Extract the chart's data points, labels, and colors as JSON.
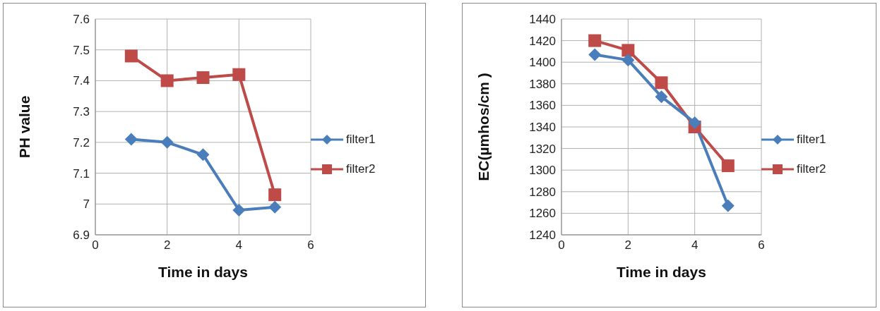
{
  "chart_data": [
    {
      "type": "line",
      "xlabel": "Time in days",
      "ylabel": "PH value",
      "x": [
        1,
        2,
        3,
        4,
        5
      ],
      "series": [
        {
          "name": "filter1",
          "color": "#4a7ebb",
          "values": [
            7.21,
            7.2,
            7.16,
            6.98,
            6.99
          ],
          "marker": "diamond"
        },
        {
          "name": "filter2",
          "color": "#be4b48",
          "values": [
            7.48,
            7.4,
            7.41,
            7.42,
            7.03
          ],
          "marker": "square"
        }
      ],
      "xlim": [
        0,
        6
      ],
      "xticks": [
        0,
        2,
        4,
        6
      ],
      "ylim": [
        6.9,
        7.6
      ],
      "yticks": [
        6.9,
        7,
        7.1,
        7.2,
        7.3,
        7.4,
        7.5,
        7.6
      ],
      "grid": true,
      "legend": "right"
    },
    {
      "type": "line",
      "xlabel": "Time  in days",
      "ylabel": "EC(µmhos/cm )",
      "x": [
        1,
        2,
        3,
        4,
        5
      ],
      "series": [
        {
          "name": "filter1",
          "color": "#4a7ebb",
          "values": [
            1407,
            1402,
            1368,
            1344,
            1267
          ],
          "marker": "diamond"
        },
        {
          "name": "filter2",
          "color": "#be4b48",
          "values": [
            1420,
            1411,
            1381,
            1340,
            1304
          ],
          "marker": "square"
        }
      ],
      "xlim": [
        0,
        6
      ],
      "xticks": [
        0,
        2,
        4,
        6
      ],
      "ylim": [
        1240,
        1440
      ],
      "yticks": [
        1240,
        1260,
        1280,
        1300,
        1320,
        1340,
        1360,
        1380,
        1400,
        1420,
        1440
      ],
      "grid": true,
      "legend": "right"
    }
  ]
}
